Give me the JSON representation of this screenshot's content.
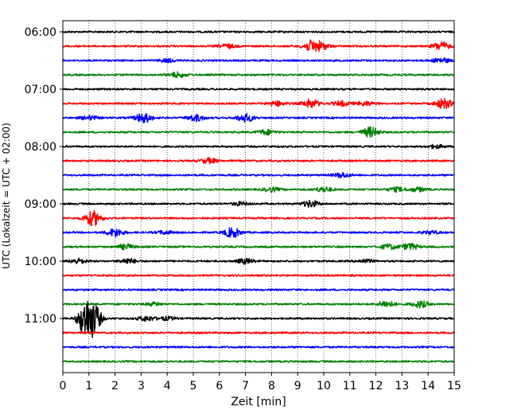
{
  "chart_data": {
    "type": "line",
    "subtype": "helicorder",
    "xlabel": "Zeit  [min]",
    "ylabel": "UTC (Lokalzeit = UTC + 02:00)",
    "xlim": [
      0,
      15
    ],
    "xticks": [
      0,
      1,
      2,
      3,
      4,
      5,
      6,
      7,
      8,
      9,
      10,
      11,
      12,
      13,
      14,
      15
    ],
    "grid": "vertical dotted lines at each minute",
    "yticks": [
      "06:00",
      "07:00",
      "08:00",
      "09:00",
      "10:00",
      "11:00"
    ],
    "trace_interval_min": 15,
    "trace_color_cycle": [
      "#000000",
      "#ff0000",
      "#0000ff",
      "#008000"
    ],
    "traces": [
      {
        "start": "06:00",
        "color": "#000000",
        "events": []
      },
      {
        "start": "06:15",
        "color": "#ff0000",
        "events": [
          {
            "t": 6.3,
            "amp": 2.5
          },
          {
            "t": 9.5,
            "amp": 6
          },
          {
            "t": 9.9,
            "amp": 4
          },
          {
            "t": 14.5,
            "amp": 5
          }
        ]
      },
      {
        "start": "06:30",
        "color": "#0000ff",
        "events": [
          {
            "t": 4.0,
            "amp": 2
          },
          {
            "t": 14.5,
            "amp": 3
          }
        ]
      },
      {
        "start": "06:45",
        "color": "#008000",
        "events": [
          {
            "t": 4.4,
            "amp": 3
          }
        ]
      },
      {
        "start": "07:00",
        "color": "#000000",
        "events": []
      },
      {
        "start": "07:15",
        "color": "#ff0000",
        "events": [
          {
            "t": 8.2,
            "amp": 3
          },
          {
            "t": 9.5,
            "amp": 5
          },
          {
            "t": 10.7,
            "amp": 3
          },
          {
            "t": 11.6,
            "amp": 2.5
          },
          {
            "t": 14.6,
            "amp": 6
          }
        ]
      },
      {
        "start": "07:30",
        "color": "#0000ff",
        "events": [
          {
            "t": 1.0,
            "amp": 2.5
          },
          {
            "t": 3.1,
            "amp": 6
          },
          {
            "t": 5.1,
            "amp": 4
          },
          {
            "t": 7.0,
            "amp": 5
          }
        ]
      },
      {
        "start": "07:45",
        "color": "#008000",
        "events": [
          {
            "t": 7.8,
            "amp": 3
          },
          {
            "t": 11.8,
            "amp": 6
          }
        ]
      },
      {
        "start": "08:00",
        "color": "#000000",
        "events": [
          {
            "t": 14.3,
            "amp": 2
          }
        ]
      },
      {
        "start": "08:15",
        "color": "#ff0000",
        "events": [
          {
            "t": 5.6,
            "amp": 3
          }
        ]
      },
      {
        "start": "08:30",
        "color": "#0000ff",
        "events": [
          {
            "t": 10.7,
            "amp": 3
          }
        ]
      },
      {
        "start": "08:45",
        "color": "#008000",
        "events": [
          {
            "t": 8.0,
            "amp": 2.5
          },
          {
            "t": 10.0,
            "amp": 3
          },
          {
            "t": 12.8,
            "amp": 2.5
          },
          {
            "t": 13.6,
            "amp": 2.5
          }
        ]
      },
      {
        "start": "09:00",
        "color": "#000000",
        "events": [
          {
            "t": 9.5,
            "amp": 4
          },
          {
            "t": 6.8,
            "amp": 2
          }
        ]
      },
      {
        "start": "09:15",
        "color": "#ff0000",
        "events": [
          {
            "t": 1.15,
            "amp": 9
          }
        ]
      },
      {
        "start": "09:30",
        "color": "#0000ff",
        "events": [
          {
            "t": 2.0,
            "amp": 5
          },
          {
            "t": 6.5,
            "amp": 6
          },
          {
            "t": 3.9,
            "amp": 2
          },
          {
            "t": 14.1,
            "amp": 2
          }
        ]
      },
      {
        "start": "09:45",
        "color": "#008000",
        "events": [
          {
            "t": 2.4,
            "amp": 3
          },
          {
            "t": 12.5,
            "amp": 3
          },
          {
            "t": 13.3,
            "amp": 4
          }
        ]
      },
      {
        "start": "10:00",
        "color": "#000000",
        "events": [
          {
            "t": 0.6,
            "amp": 3
          },
          {
            "t": 2.5,
            "amp": 3
          },
          {
            "t": 7.0,
            "amp": 3
          },
          {
            "t": 11.6,
            "amp": 2
          }
        ]
      },
      {
        "start": "10:15",
        "color": "#ff0000",
        "events": []
      },
      {
        "start": "10:30",
        "color": "#0000ff",
        "events": []
      },
      {
        "start": "10:45",
        "color": "#008000",
        "events": [
          {
            "t": 3.5,
            "amp": 2
          },
          {
            "t": 12.4,
            "amp": 4
          },
          {
            "t": 13.7,
            "amp": 4
          }
        ]
      },
      {
        "start": "11:00",
        "color": "#000000",
        "events": [
          {
            "t": 0.85,
            "amp": 22
          },
          {
            "t": 1.2,
            "amp": 18
          },
          {
            "t": 3.2,
            "amp": 3
          },
          {
            "t": 4.0,
            "amp": 2
          }
        ]
      },
      {
        "start": "11:15",
        "color": "#ff0000",
        "events": []
      },
      {
        "start": "11:30",
        "color": "#0000ff",
        "events": []
      },
      {
        "start": "11:45",
        "color": "#008000",
        "events": []
      }
    ]
  }
}
